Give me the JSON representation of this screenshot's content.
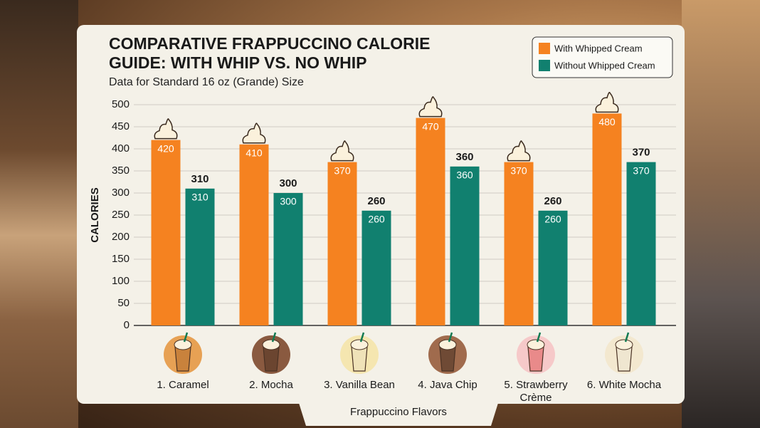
{
  "chart_data": {
    "type": "bar",
    "title": "COMPARATIVE FRAPPUCCINO CALORIE GUIDE: WITH WHIP VS. NO WHIP",
    "subtitle": "Data for Standard 16 oz (Grande) Size",
    "x_label": "Frappuccino Flavors",
    "y_label": "CALORIES",
    "categories": [
      "1. Caramel",
      "2. Mocha",
      "3. Vanilla Bean",
      "4. Java Chip",
      "5. Strawberry Crème",
      "6. White Mocha"
    ],
    "series": [
      {
        "name": "With Whipped Cream",
        "color": "#f58220",
        "values": [
          420,
          410,
          370,
          470,
          370,
          480
        ]
      },
      {
        "name": "Without Whipped Cream",
        "color": "#11806f",
        "values": [
          310,
          300,
          260,
          360,
          260,
          370
        ]
      }
    ],
    "ylim": [
      0,
      500
    ],
    "yticks": [
      0,
      50,
      100,
      150,
      200,
      250,
      300,
      350,
      400,
      450,
      500
    ],
    "grid": true,
    "legend": "top-right"
  }
}
